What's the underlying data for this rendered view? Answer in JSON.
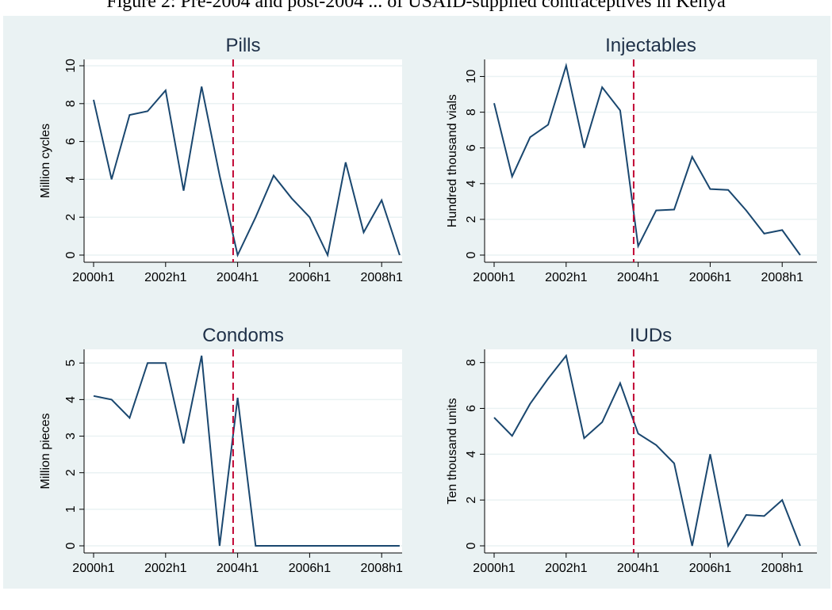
{
  "caption_fragment": "Figure 2: Pre-2004 and post-2004 ... of USAID-supplied contraceptives in Kenya",
  "colors": {
    "figure_background": "#eaf2f3",
    "plot_background": "#ffffff",
    "series_line": "#1a476f",
    "reference_line": "#c10534",
    "gridline": "#eaf2f3"
  },
  "chart_data": [
    {
      "type": "line",
      "title": "Pills",
      "xlabel": "",
      "ylabel": "Million cycles",
      "x": [
        "2000h1",
        "2000h2",
        "2001h1",
        "2001h2",
        "2002h1",
        "2002h2",
        "2003h1",
        "2003h2",
        "2004h1",
        "2004h2",
        "2005h1",
        "2005h2",
        "2006h1",
        "2006h2",
        "2007h1",
        "2007h2",
        "2008h1",
        "2008h2"
      ],
      "x_ticks": [
        "2000h1",
        "2002h1",
        "2004h1",
        "2006h1",
        "2008h1"
      ],
      "y_ticks": [
        0,
        2,
        4,
        6,
        8,
        10
      ],
      "ylim": [
        0,
        10
      ],
      "values": [
        8.2,
        4.0,
        7.4,
        7.6,
        8.7,
        3.4,
        8.9,
        4.2,
        0.0,
        2.0,
        4.2,
        3.0,
        2.0,
        0.0,
        4.9,
        1.2,
        2.9,
        0.0
      ],
      "reference_line_x": "2003h2 (late)",
      "grid": true
    },
    {
      "type": "line",
      "title": "Injectables",
      "xlabel": "",
      "ylabel": "Hundred thousand vials",
      "x": [
        "2000h1",
        "2000h2",
        "2001h1",
        "2001h2",
        "2002h1",
        "2002h2",
        "2003h1",
        "2003h2",
        "2004h1",
        "2004h2",
        "2005h1",
        "2005h2",
        "2006h1",
        "2006h2",
        "2007h1",
        "2007h2",
        "2008h1",
        "2008h2"
      ],
      "x_ticks": [
        "2000h1",
        "2002h1",
        "2004h1",
        "2006h1",
        "2008h1"
      ],
      "y_ticks": [
        0,
        2,
        4,
        6,
        8,
        10
      ],
      "ylim": [
        0,
        10.6
      ],
      "values": [
        8.5,
        4.4,
        6.6,
        7.3,
        10.6,
        6.0,
        9.4,
        8.1,
        0.5,
        2.5,
        2.55,
        5.5,
        3.7,
        3.65,
        2.5,
        1.2,
        1.4,
        0.0
      ],
      "reference_line_x": "2003h2 (late)",
      "grid": true
    },
    {
      "type": "line",
      "title": "Condoms",
      "xlabel": "",
      "ylabel": "Million pieces",
      "x": [
        "2000h1",
        "2000h2",
        "2001h1",
        "2001h2",
        "2002h1",
        "2002h2",
        "2003h1",
        "2003h2",
        "2004h1",
        "2004h2",
        "2005h1",
        "2005h2",
        "2006h1",
        "2006h2",
        "2007h1",
        "2007h2",
        "2008h1",
        "2008h2"
      ],
      "x_ticks": [
        "2000h1",
        "2002h1",
        "2004h1",
        "2006h1",
        "2008h1"
      ],
      "y_ticks": [
        0,
        1,
        2,
        3,
        4,
        5
      ],
      "ylim": [
        0,
        5.2
      ],
      "values": [
        4.1,
        4.0,
        3.5,
        5.0,
        5.0,
        2.8,
        5.2,
        0.0,
        4.05,
        0.0,
        0.0,
        0.0,
        0.0,
        0.0,
        0.0,
        0.0,
        0.0,
        0.0
      ],
      "reference_line_x": "2003h2 (late)",
      "grid": true
    },
    {
      "type": "line",
      "title": "IUDs",
      "xlabel": "",
      "ylabel": "Ten thousand units",
      "x": [
        "2000h1",
        "2000h2",
        "2001h1",
        "2001h2",
        "2002h1",
        "2002h2",
        "2003h1",
        "2003h2",
        "2004h1",
        "2004h2",
        "2005h1",
        "2005h2",
        "2006h1",
        "2006h2",
        "2007h1",
        "2007h2",
        "2008h1",
        "2008h2"
      ],
      "x_ticks": [
        "2000h1",
        "2002h1",
        "2004h1",
        "2006h1",
        "2008h1"
      ],
      "y_ticks": [
        0,
        2,
        4,
        6,
        8
      ],
      "ylim": [
        0,
        8.3
      ],
      "values": [
        5.6,
        4.8,
        6.2,
        7.3,
        8.3,
        4.7,
        5.4,
        7.1,
        4.9,
        4.4,
        3.6,
        0.0,
        4.0,
        0.0,
        1.35,
        1.3,
        2.0,
        0.0
      ],
      "reference_line_x": "2003h2 (late)",
      "grid": true
    }
  ]
}
